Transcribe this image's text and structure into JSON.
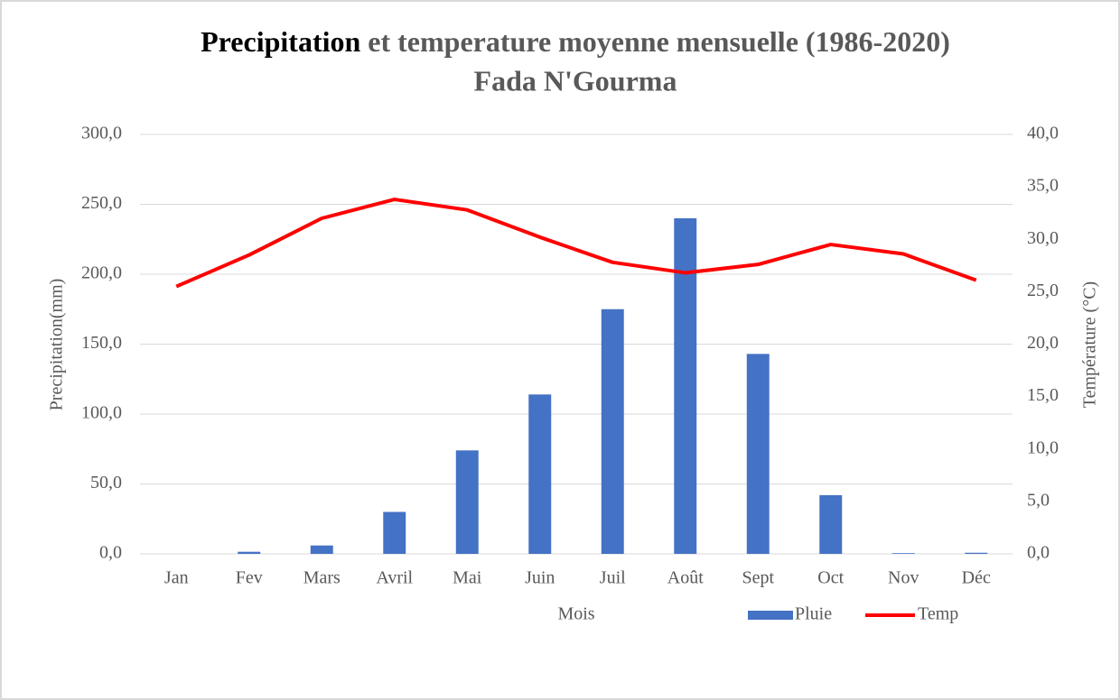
{
  "chart_data": {
    "type": "bar_line",
    "title": [
      "Precipitation",
      "et temperature moyenne mensuelle (1986-2020)"
    ],
    "subtitle": "Fada  N'Gourma",
    "x_label": "Mois",
    "y_label": "Precipitation(mm)",
    "y2_label": "Température (°C)",
    "categories": [
      "Jan",
      "Fev",
      "Mars",
      "Avril",
      "Mai",
      "Juin",
      "Juil",
      "Août",
      "Sept",
      "Oct",
      "Nov",
      "Déc"
    ],
    "series": [
      {
        "name": "Pluie",
        "type": "bar",
        "color": "#4472c4",
        "values": [
          0,
          1.5,
          6,
          30,
          74,
          114,
          175,
          240,
          143,
          42,
          0.5,
          0.8
        ]
      },
      {
        "name": "Temp",
        "type": "line",
        "axis": "y2",
        "color": "#ff0000",
        "values": [
          25.5,
          28.5,
          32,
          33.8,
          32.8,
          30.2,
          27.8,
          26.8,
          27.6,
          29.5,
          28.6,
          26.1
        ]
      }
    ],
    "ylim": [
      0,
      300
    ],
    "yticks": [
      {
        "value": 0,
        "label": "0,0"
      },
      {
        "value": 50,
        "label": "50,0"
      },
      {
        "value": 100,
        "label": "100,0"
      },
      {
        "value": 150,
        "label": "150,0"
      },
      {
        "value": 200,
        "label": "200,0"
      },
      {
        "value": 250,
        "label": "250,0"
      },
      {
        "value": 300,
        "label": "300,0"
      }
    ],
    "y2lim": [
      0,
      40
    ],
    "y2ticks": [
      {
        "value": 0,
        "label": "0,0"
      },
      {
        "value": 5,
        "label": "5,0"
      },
      {
        "value": 10,
        "label": "10,0"
      },
      {
        "value": 15,
        "label": "15,0"
      },
      {
        "value": 20,
        "label": "20,0"
      },
      {
        "value": 25,
        "label": "25,0"
      },
      {
        "value": 30,
        "label": "30,0"
      },
      {
        "value": 35,
        "label": "35,0"
      },
      {
        "value": 40,
        "label": "40,0"
      }
    ],
    "grid": true,
    "legend": "bottom-right"
  }
}
